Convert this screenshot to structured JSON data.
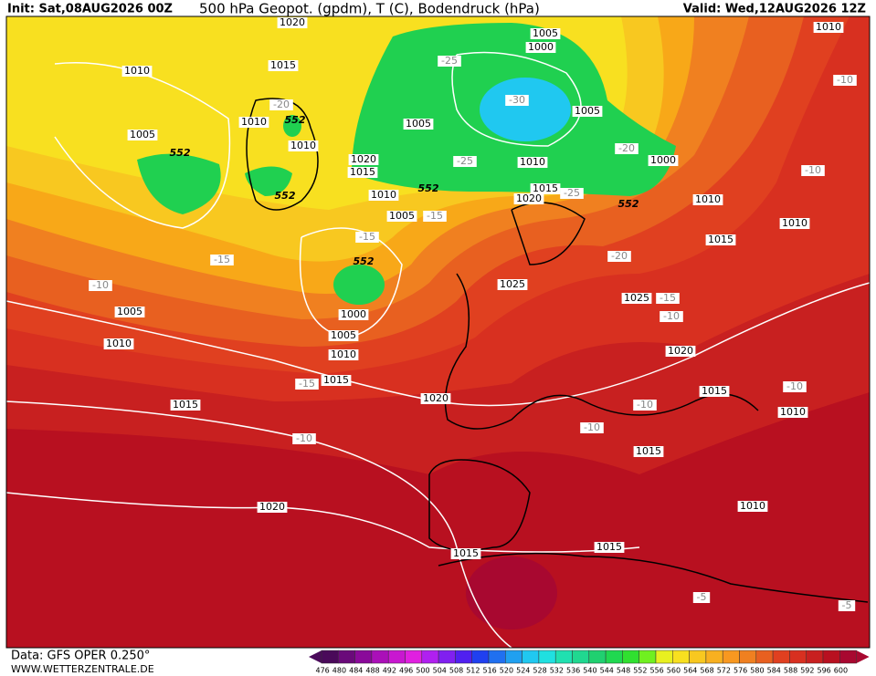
{
  "header": {
    "init": "Init: Sat,08AUG2026 00Z",
    "title": "500 hPa Geopot. (gpdm), T (C), Bodendruck (hPa)",
    "valid": "Valid: Wed,12AUG2026 12Z"
  },
  "footer": {
    "data_source": "Data: GFS OPER 0.250°",
    "website": "WWW.WETTERZENTRALE.DE"
  },
  "colorbar": {
    "ticks": [
      476,
      480,
      484,
      488,
      492,
      496,
      500,
      504,
      508,
      512,
      516,
      520,
      524,
      528,
      532,
      536,
      540,
      544,
      548,
      552,
      556,
      560,
      564,
      568,
      572,
      576,
      580,
      584,
      588,
      592,
      596,
      600
    ],
    "colors": [
      "#4a0a5a",
      "#6a0a7a",
      "#8a0a9a",
      "#aa10b8",
      "#c818d0",
      "#e020e0",
      "#b020f0",
      "#8020f0",
      "#5020f0",
      "#2040f0",
      "#2070f0",
      "#20a0f0",
      "#20c8f0",
      "#20e0e0",
      "#20e0b0",
      "#20d890",
      "#20d070",
      "#20d850",
      "#30e030",
      "#70f020",
      "#e8f020",
      "#f8e020",
      "#f8c820",
      "#f8b020",
      "#f89820",
      "#f08020",
      "#e86020",
      "#e04020",
      "#d83020",
      "#c82020",
      "#b81020",
      "#a80830"
    ]
  },
  "map_labels": [
    "1020",
    "1005",
    "1000",
    "1010",
    "1010",
    "1015",
    "-25",
    "-10",
    "-20",
    "552",
    "-30",
    "1005",
    "1010",
    "1005",
    "1005",
    "1010",
    "552",
    "-20",
    "1000",
    "1020",
    "-25",
    "1010",
    "-10",
    "1015",
    "552",
    "1015",
    "-25",
    "552",
    "1020",
    "1010",
    "1010",
    "552",
    "1005",
    "-15",
    "1010",
    "-15",
    "1015",
    "-15",
    "-20",
    "552",
    "-10",
    "1025",
    "1025",
    "-15",
    "1000",
    "1005",
    "-10",
    "1005",
    "1010",
    "1010",
    "1020",
    "1015",
    "-15",
    "-10",
    "1015",
    "1020",
    "1015",
    "-10",
    "1010",
    "-10",
    "-10",
    "1015",
    "1020",
    "1010",
    "1015",
    "1015",
    "-5",
    "-5"
  ]
}
